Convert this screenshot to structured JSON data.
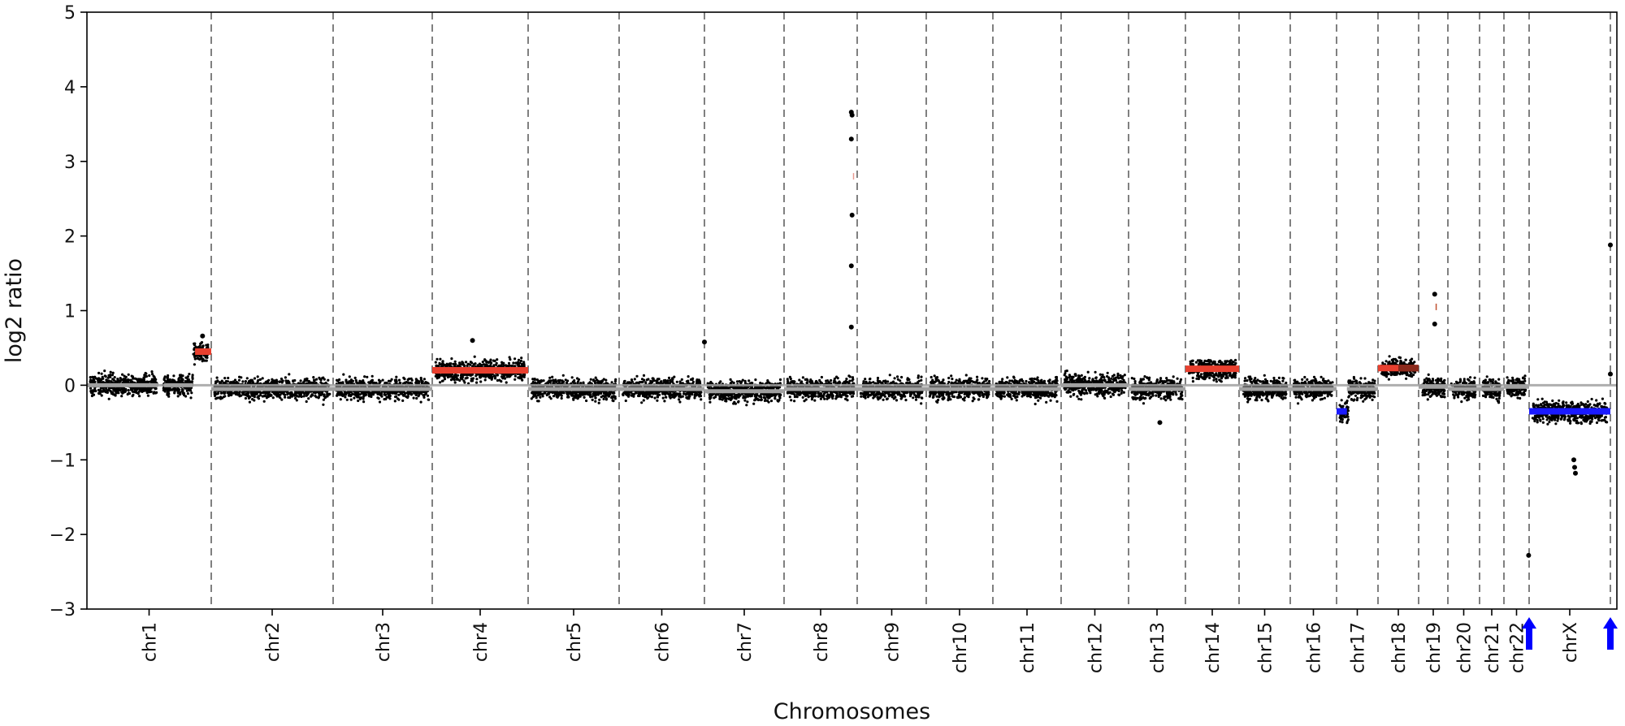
{
  "chart_data": {
    "type": "scatter",
    "title": "",
    "xlabel": "Chromosomes",
    "ylabel": "log2 ratio",
    "ylim": [
      -3,
      5
    ],
    "yticks": [
      5,
      4,
      3,
      2,
      1,
      0,
      -1,
      -2,
      -3
    ],
    "ytick_labels": [
      "5",
      "4",
      "3",
      "2",
      "1",
      "0",
      "−1",
      "−2",
      "−3"
    ],
    "grid": false,
    "legend": "none",
    "baseline": 0,
    "colors": {
      "points": "#000000",
      "gain_segment": "#e8402f",
      "gain_segment_dark": "#8b2a1c",
      "loss_segment": "#1a1aff",
      "neutral_segment": "#a0a0a0",
      "boundary": "#808080",
      "arrow": "#0000ff"
    },
    "chromosomes": [
      {
        "name": "chr1",
        "spread": 0.22,
        "segments": [
          {
            "from": 0.0,
            "to": 0.57,
            "value": 0.0,
            "kind": "neutral"
          },
          {
            "from": 0.62,
            "to": 0.85,
            "value": 0.0,
            "kind": "neutral"
          },
          {
            "from": 0.87,
            "to": 1.0,
            "value": 0.45,
            "kind": "gain"
          }
        ],
        "gaps": [
          [
            0.57,
            0.62
          ]
        ]
      },
      {
        "name": "chr2",
        "spread": 0.22,
        "segments": [
          {
            "from": 0.0,
            "to": 1.0,
            "value": -0.05,
            "kind": "neutral"
          }
        ]
      },
      {
        "name": "chr3",
        "spread": 0.22,
        "segments": [
          {
            "from": 0.0,
            "to": 1.0,
            "value": -0.05,
            "kind": "neutral"
          }
        ]
      },
      {
        "name": "chr4",
        "spread": 0.22,
        "segments": [
          {
            "from": 0.0,
            "to": 1.0,
            "value": 0.2,
            "kind": "gain"
          }
        ]
      },
      {
        "name": "chr5",
        "spread": 0.22,
        "segments": [
          {
            "from": 0.0,
            "to": 1.0,
            "value": -0.05,
            "kind": "neutral"
          }
        ]
      },
      {
        "name": "chr6",
        "spread": 0.22,
        "segments": [
          {
            "from": 0.0,
            "to": 1.0,
            "value": -0.05,
            "kind": "neutral"
          }
        ]
      },
      {
        "name": "chr7",
        "spread": 0.22,
        "segments": [
          {
            "from": 0.0,
            "to": 1.0,
            "value": -0.08,
            "kind": "neutral"
          }
        ]
      },
      {
        "name": "chr8",
        "spread": 0.22,
        "segments": [
          {
            "from": 0.0,
            "to": 1.0,
            "value": -0.05,
            "kind": "neutral"
          }
        ]
      },
      {
        "name": "chr9",
        "spread": 0.22,
        "segments": [
          {
            "from": 0.0,
            "to": 1.0,
            "value": -0.05,
            "kind": "neutral"
          }
        ]
      },
      {
        "name": "chr10",
        "spread": 0.22,
        "segments": [
          {
            "from": 0.0,
            "to": 1.0,
            "value": -0.05,
            "kind": "neutral"
          }
        ]
      },
      {
        "name": "chr11",
        "spread": 0.22,
        "segments": [
          {
            "from": 0.0,
            "to": 1.0,
            "value": -0.05,
            "kind": "neutral"
          }
        ]
      },
      {
        "name": "chr12",
        "spread": 0.22,
        "segments": [
          {
            "from": 0.0,
            "to": 1.0,
            "value": 0.0,
            "kind": "neutral"
          }
        ]
      },
      {
        "name": "chr13",
        "spread": 0.22,
        "segments": [
          {
            "from": 0.0,
            "to": 1.0,
            "value": -0.05,
            "kind": "neutral"
          }
        ]
      },
      {
        "name": "chr14",
        "spread": 0.2,
        "segments": [
          {
            "from": 0.0,
            "to": 1.0,
            "value": 0.22,
            "kind": "gain"
          }
        ]
      },
      {
        "name": "chr15",
        "spread": 0.22,
        "segments": [
          {
            "from": 0.0,
            "to": 1.0,
            "value": -0.05,
            "kind": "neutral"
          }
        ]
      },
      {
        "name": "chr16",
        "spread": 0.22,
        "segments": [
          {
            "from": 0.0,
            "to": 1.0,
            "value": -0.05,
            "kind": "neutral"
          }
        ]
      },
      {
        "name": "chr17",
        "spread": 0.22,
        "segments": [
          {
            "from": 0.0,
            "to": 0.25,
            "value": -0.35,
            "kind": "loss"
          },
          {
            "from": 0.25,
            "to": 1.0,
            "value": -0.05,
            "kind": "neutral"
          }
        ]
      },
      {
        "name": "chr18",
        "spread": 0.2,
        "segments": [
          {
            "from": 0.0,
            "to": 1.0,
            "value": 0.23,
            "kind": "gain"
          }
        ]
      },
      {
        "name": "chr19",
        "spread": 0.22,
        "segments": [
          {
            "from": 0.0,
            "to": 1.0,
            "value": -0.02,
            "kind": "neutral"
          }
        ]
      },
      {
        "name": "chr20",
        "spread": 0.22,
        "segments": [
          {
            "from": 0.0,
            "to": 1.0,
            "value": -0.05,
            "kind": "neutral"
          }
        ]
      },
      {
        "name": "chr21",
        "spread": 0.22,
        "segments": [
          {
            "from": 0.0,
            "to": 1.0,
            "value": -0.05,
            "kind": "neutral"
          }
        ]
      },
      {
        "name": "chr22",
        "spread": 0.22,
        "segments": [
          {
            "from": 0.0,
            "to": 1.0,
            "value": -0.02,
            "kind": "neutral"
          }
        ]
      },
      {
        "name": "chrX",
        "spread": 0.22,
        "segments": [
          {
            "from": 0.0,
            "to": 1.0,
            "value": -0.35,
            "kind": "loss"
          }
        ]
      }
    ],
    "outliers": [
      {
        "chrom": "chr1",
        "pos": 0.93,
        "y": 0.66
      },
      {
        "chrom": "chr4",
        "pos": 0.42,
        "y": 0.6
      },
      {
        "chrom": "chr7",
        "pos": 0.0,
        "y": 0.58
      },
      {
        "chrom": "chr8",
        "pos": 0.92,
        "y": 3.66
      },
      {
        "chrom": "chr8",
        "pos": 0.93,
        "y": 3.62
      },
      {
        "chrom": "chr8",
        "pos": 0.92,
        "y": 3.3
      },
      {
        "chrom": "chr8",
        "pos": 0.93,
        "y": 2.28
      },
      {
        "chrom": "chr8",
        "pos": 0.92,
        "y": 1.6
      },
      {
        "chrom": "chr8",
        "pos": 0.92,
        "y": 0.78
      },
      {
        "chrom": "chr13",
        "pos": 0.55,
        "y": -0.5
      },
      {
        "chrom": "chr19",
        "pos": 0.55,
        "y": 1.22
      },
      {
        "chrom": "chr19",
        "pos": 0.55,
        "y": 0.82
      },
      {
        "chrom": "chr22",
        "pos": 0.98,
        "y": -2.28
      },
      {
        "chrom": "chrX",
        "pos": 0.55,
        "y": -1.0
      },
      {
        "chrom": "chrX",
        "pos": 0.56,
        "y": -1.1
      },
      {
        "chrom": "chrX",
        "pos": 0.57,
        "y": -1.18
      },
      {
        "chrom": "chrX",
        "pos": 1.0,
        "y": 1.88
      },
      {
        "chrom": "chrX",
        "pos": 1.0,
        "y": 0.15
      }
    ],
    "faint_marks": [
      {
        "chrom": "chr8",
        "pos": 0.95,
        "y": 2.8,
        "color": "#e89a90"
      },
      {
        "chrom": "chr19",
        "pos": 0.6,
        "y": 1.05,
        "color": "#c05030"
      }
    ],
    "arrows": [
      {
        "chrom": "chrX",
        "pos": 0.0,
        "color": "#0000ff"
      },
      {
        "chrom": "chrX",
        "pos": 1.0,
        "color": "#0000ff"
      }
    ]
  }
}
